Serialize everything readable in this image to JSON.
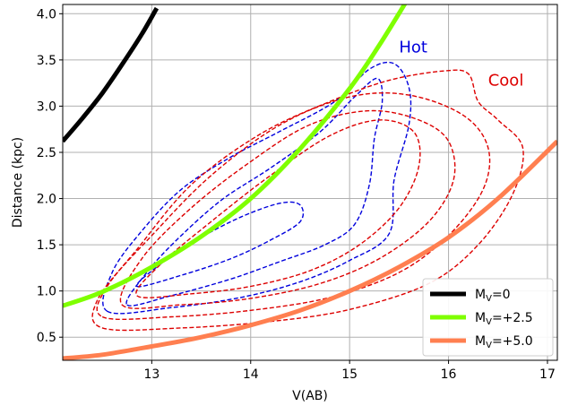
{
  "chart_data": {
    "type": "line",
    "title": "",
    "xlabel": "V(AB)",
    "ylabel": "Distance (kpc)",
    "xlim": [
      12.1,
      17.1
    ],
    "ylim": [
      0.25,
      4.1
    ],
    "xticks": [
      13,
      14,
      15,
      16,
      17
    ],
    "yticks": [
      0.5,
      1.0,
      1.5,
      2.0,
      2.5,
      3.0,
      3.5,
      4.0
    ],
    "xtick_labels": [
      "13",
      "14",
      "15",
      "16",
      "17"
    ],
    "ytick_labels": [
      "0.5",
      "1.0",
      "1.5",
      "2.0",
      "2.5",
      "3.0",
      "3.5",
      "4.0"
    ],
    "grid": true,
    "legend_position": "lower-right",
    "series": [
      {
        "name": "M_V=0",
        "legend_base": "M",
        "legend_sub": "V",
        "legend_suffix": "=0",
        "color": "#000000",
        "x": [
          12.1,
          12.3,
          12.5,
          12.7,
          12.9,
          13.05
        ],
        "y": [
          2.62,
          2.87,
          3.14,
          3.45,
          3.78,
          4.06
        ]
      },
      {
        "name": "M_V=+2.5",
        "legend_base": "M",
        "legend_sub": "V",
        "legend_suffix": "=+2.5",
        "color": "#7fff00",
        "x": [
          12.1,
          12.5,
          13.0,
          13.5,
          14.0,
          14.5,
          15.0,
          15.3,
          15.6
        ],
        "y": [
          0.84,
          0.99,
          1.26,
          1.59,
          2.0,
          2.54,
          3.19,
          3.66,
          4.18
        ]
      },
      {
        "name": "M_V=+5.0",
        "legend_base": "M",
        "legend_sub": "V",
        "legend_suffix": "=+5.0",
        "color": "#ff7f50",
        "x": [
          12.1,
          12.5,
          13.0,
          13.5,
          14.0,
          14.5,
          15.0,
          15.5,
          16.0,
          16.5,
          17.1
        ],
        "y": [
          0.27,
          0.31,
          0.4,
          0.5,
          0.63,
          0.79,
          1.0,
          1.26,
          1.58,
          2.0,
          2.62
        ]
      }
    ],
    "contours": [
      {
        "group": "Hot",
        "color": "#0000dd",
        "points": [
          [
            12.75,
            0.85
          ],
          [
            13.2,
            0.95
          ],
          [
            13.8,
            1.13
          ],
          [
            14.3,
            1.32
          ],
          [
            14.75,
            1.5
          ],
          [
            15.05,
            1.72
          ],
          [
            15.2,
            2.15
          ],
          [
            15.25,
            2.65
          ],
          [
            15.33,
            3.05
          ],
          [
            15.28,
            3.3
          ],
          [
            15.05,
            3.1
          ],
          [
            14.7,
            2.72
          ],
          [
            14.2,
            2.33
          ],
          [
            13.7,
            1.98
          ],
          [
            13.25,
            1.55
          ],
          [
            12.95,
            1.2
          ],
          [
            12.75,
            0.85
          ]
        ]
      },
      {
        "group": "Hot",
        "color": "#0000dd",
        "points": [
          [
            12.55,
            0.78
          ],
          [
            13.2,
            0.82
          ],
          [
            13.9,
            0.93
          ],
          [
            14.5,
            1.1
          ],
          [
            15.0,
            1.33
          ],
          [
            15.4,
            1.62
          ],
          [
            15.45,
            2.2
          ],
          [
            15.6,
            2.8
          ],
          [
            15.6,
            3.2
          ],
          [
            15.45,
            3.46
          ],
          [
            15.2,
            3.4
          ],
          [
            14.85,
            3.05
          ],
          [
            14.3,
            2.73
          ],
          [
            13.8,
            2.45
          ],
          [
            13.3,
            2.1
          ],
          [
            12.9,
            1.65
          ],
          [
            12.6,
            1.2
          ],
          [
            12.55,
            0.78
          ]
        ]
      },
      {
        "group": "Hot",
        "color": "#0000dd",
        "points": [
          [
            12.85,
            1.05
          ],
          [
            13.3,
            1.17
          ],
          [
            13.8,
            1.35
          ],
          [
            14.2,
            1.55
          ],
          [
            14.5,
            1.75
          ],
          [
            14.5,
            1.93
          ],
          [
            14.3,
            1.95
          ],
          [
            13.9,
            1.8
          ],
          [
            13.45,
            1.55
          ],
          [
            13.1,
            1.3
          ],
          [
            12.85,
            1.05
          ]
        ]
      },
      {
        "group": "Cool",
        "color": "#dd0000",
        "points": [
          [
            12.85,
            0.95
          ],
          [
            13.4,
            0.97
          ],
          [
            14.0,
            1.05
          ],
          [
            14.6,
            1.22
          ],
          [
            15.1,
            1.5
          ],
          [
            15.5,
            1.9
          ],
          [
            15.7,
            2.35
          ],
          [
            15.65,
            2.72
          ],
          [
            15.3,
            2.85
          ],
          [
            14.8,
            2.68
          ],
          [
            14.2,
            2.25
          ],
          [
            13.6,
            1.75
          ],
          [
            13.1,
            1.3
          ],
          [
            12.85,
            0.95
          ]
        ]
      },
      {
        "group": "Cool",
        "color": "#dd0000",
        "points": [
          [
            12.7,
            0.85
          ],
          [
            13.3,
            0.85
          ],
          [
            14.0,
            0.92
          ],
          [
            14.7,
            1.08
          ],
          [
            15.3,
            1.35
          ],
          [
            15.8,
            1.75
          ],
          [
            16.05,
            2.2
          ],
          [
            16.0,
            2.62
          ],
          [
            15.7,
            2.85
          ],
          [
            15.2,
            2.95
          ],
          [
            14.6,
            2.8
          ],
          [
            14.0,
            2.4
          ],
          [
            13.4,
            1.9
          ],
          [
            12.9,
            1.35
          ],
          [
            12.7,
            0.85
          ]
        ]
      },
      {
        "group": "Cool",
        "color": "#dd0000",
        "points": [
          [
            12.5,
            0.72
          ],
          [
            13.2,
            0.72
          ],
          [
            14.0,
            0.79
          ],
          [
            14.8,
            0.93
          ],
          [
            15.5,
            1.2
          ],
          [
            16.0,
            1.6
          ],
          [
            16.35,
            2.1
          ],
          [
            16.4,
            2.55
          ],
          [
            16.15,
            2.9
          ],
          [
            15.6,
            3.12
          ],
          [
            15.0,
            3.1
          ],
          [
            14.3,
            2.8
          ],
          [
            13.6,
            2.25
          ],
          [
            13.0,
            1.6
          ],
          [
            12.55,
            1.05
          ],
          [
            12.5,
            0.72
          ]
        ]
      },
      {
        "group": "Cool",
        "color": "#dd0000",
        "points": [
          [
            12.5,
            0.6
          ],
          [
            13.3,
            0.6
          ],
          [
            14.2,
            0.67
          ],
          [
            15.0,
            0.8
          ],
          [
            15.8,
            1.08
          ],
          [
            16.3,
            1.5
          ],
          [
            16.65,
            2.05
          ],
          [
            16.75,
            2.55
          ],
          [
            16.5,
            2.85
          ],
          [
            16.3,
            3.05
          ],
          [
            16.2,
            3.35
          ],
          [
            15.95,
            3.38
          ],
          [
            15.4,
            3.28
          ],
          [
            14.8,
            3.05
          ],
          [
            14.1,
            2.7
          ],
          [
            13.4,
            2.15
          ],
          [
            12.85,
            1.45
          ],
          [
            12.45,
            0.9
          ],
          [
            12.5,
            0.6
          ]
        ]
      }
    ],
    "annotations": [
      {
        "text": "Hot",
        "x": 15.5,
        "y": 3.58,
        "color": "#0000dd"
      },
      {
        "text": "Cool",
        "x": 16.4,
        "y": 3.22,
        "color": "#dd0000"
      }
    ]
  }
}
